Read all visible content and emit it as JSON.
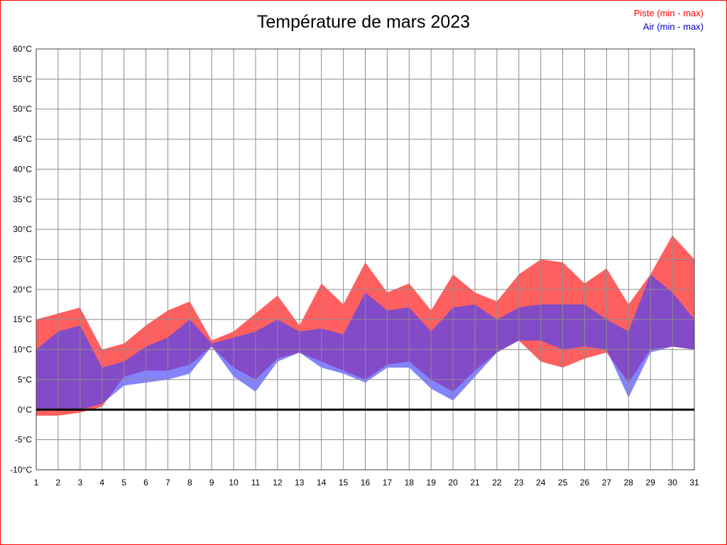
{
  "page": {
    "frame_border_color": "#ff0000",
    "background": "#ffffff"
  },
  "chart_data": {
    "type": "area",
    "title": "Température de mars 2023",
    "xlabel": "",
    "ylabel": "",
    "x": [
      1,
      2,
      3,
      4,
      5,
      6,
      7,
      8,
      9,
      10,
      11,
      12,
      13,
      14,
      15,
      16,
      17,
      18,
      19,
      20,
      21,
      22,
      23,
      24,
      25,
      26,
      27,
      28,
      29,
      30,
      31
    ],
    "ylim": [
      -10,
      60
    ],
    "ytick_step": 5,
    "ytick_suffix": "°C",
    "grid": true,
    "grid_color": "#8c8c8c",
    "frame_color": "#444444",
    "tick_label_color": "#000000",
    "zero_line": {
      "value": 0,
      "color": "#000000",
      "width": 3
    },
    "legend": [
      {
        "label": "Piste (min - max)",
        "color": "#ff0000"
      },
      {
        "label": "Air (min - max)",
        "color": "#0000cc"
      }
    ],
    "legend_position": "top-right",
    "series": [
      {
        "name": "Piste",
        "fill": "#ff5f5f",
        "opacity": 1.0,
        "min": [
          -1,
          -1,
          -0.5,
          0.5,
          5.5,
          6.5,
          6.5,
          7.5,
          10.5,
          7,
          5,
          8.5,
          9.5,
          8,
          6.5,
          5,
          7.5,
          8,
          5,
          3,
          6.5,
          9.5,
          11.5,
          8,
          7,
          8.5,
          9.5,
          4.5,
          10,
          10.5,
          10
        ],
        "max": [
          15,
          16,
          17,
          10,
          11,
          14,
          16.5,
          18,
          11.5,
          13,
          16,
          19,
          14,
          21,
          17.5,
          24.5,
          19.5,
          21,
          16.5,
          22.5,
          19.5,
          18,
          22.5,
          25,
          24.5,
          21,
          23.5,
          17.5,
          22.5,
          29,
          25
        ]
      },
      {
        "name": "Air",
        "fill": "#4040ff",
        "opacity": 0.65,
        "min": [
          0,
          0,
          0,
          1,
          4,
          4.5,
          5,
          6,
          10.5,
          5.5,
          3,
          8,
          9.5,
          7,
          6,
          4.5,
          7,
          7,
          3.5,
          1.5,
          5.5,
          9.5,
          11.5,
          11.5,
          10,
          10.5,
          10,
          2,
          9.5,
          10.5,
          10
        ],
        "max": [
          10,
          13,
          14,
          7,
          8,
          10.5,
          12,
          15,
          11,
          12,
          13,
          15,
          13,
          13.5,
          12.5,
          19.5,
          16.5,
          17,
          13,
          17,
          17.5,
          15,
          17,
          17.5,
          17.5,
          17.5,
          15,
          13,
          22.5,
          19.5,
          15
        ]
      }
    ]
  }
}
